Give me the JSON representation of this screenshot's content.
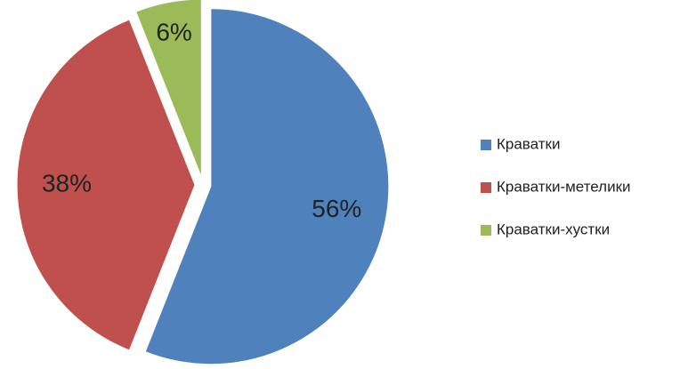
{
  "chart_data": {
    "type": "pie",
    "categories": [
      "Краватки",
      "Краватки-метелики",
      "Краватки-хустки"
    ],
    "values": [
      56,
      38,
      6
    ],
    "value_labels": [
      "56%",
      "38%",
      "6%"
    ],
    "colors": [
      "#4f81bd",
      "#c0504d",
      "#9bbb59"
    ],
    "legend": "right"
  }
}
